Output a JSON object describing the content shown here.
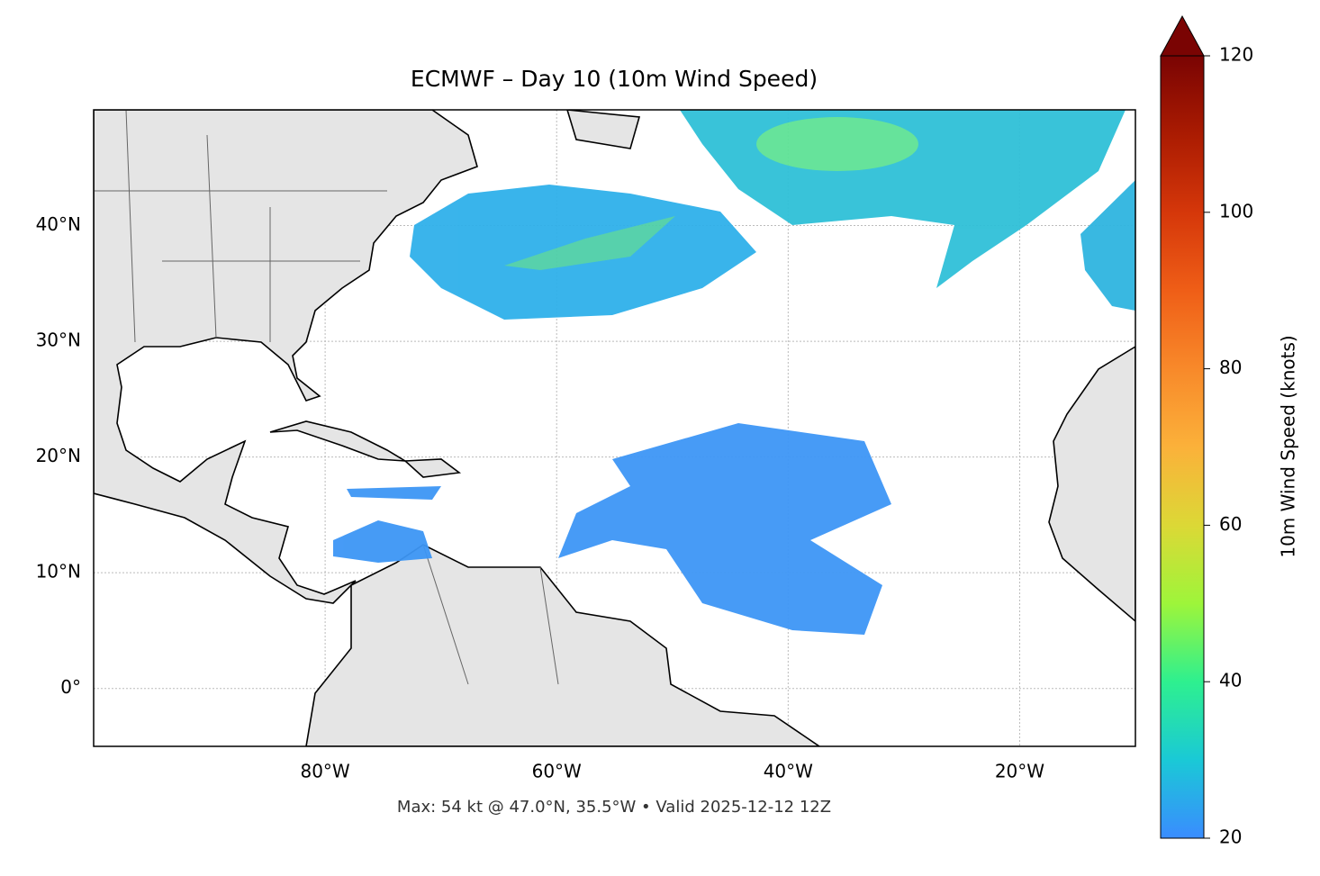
{
  "map": {
    "title": "ECMWF – Day 10 (10m Wind Speed)",
    "lon_range": [
      -100,
      -10
    ],
    "lat_range": [
      -5,
      50
    ],
    "lon_ticks": [
      {
        "value": -80,
        "label": "80°W"
      },
      {
        "value": -60,
        "label": "60°W"
      },
      {
        "value": -40,
        "label": "40°W"
      },
      {
        "value": -20,
        "label": "20°W"
      }
    ],
    "lat_ticks": [
      {
        "value": 40,
        "label": "40°N"
      },
      {
        "value": 30,
        "label": "30°N"
      },
      {
        "value": 20,
        "label": "20°N"
      },
      {
        "value": 10,
        "label": "10°N"
      },
      {
        "value": 0,
        "label": "0°"
      }
    ],
    "footer": "Max: 54 kt @ 47.0°N, 35.5°W • Valid 2025-12-12 12Z",
    "colorbar": {
      "label": "10m Wind Speed (knots)",
      "range": [
        20,
        120
      ],
      "ticks": [
        20,
        40,
        60,
        80,
        100,
        120
      ]
    }
  }
}
